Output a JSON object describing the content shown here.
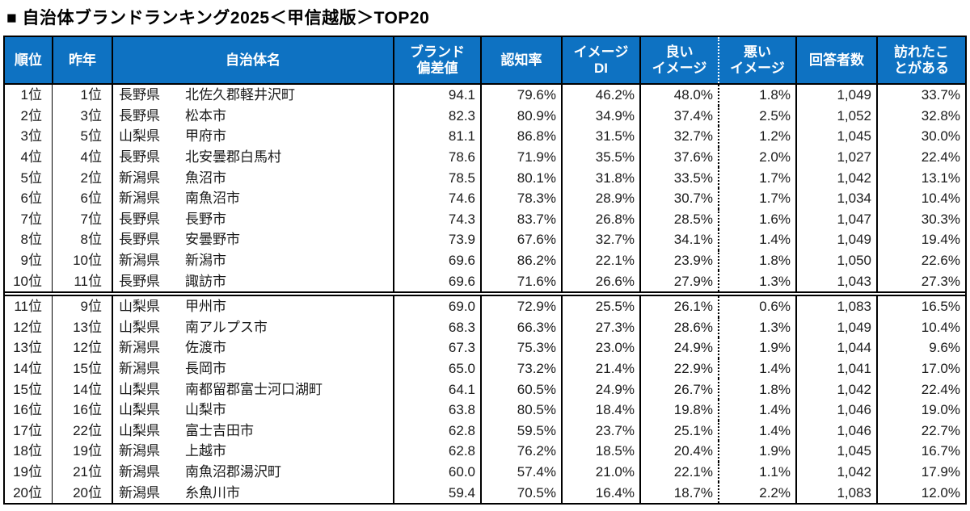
{
  "title": "■ 自治体ブランドランキング2025＜甲信越版＞TOP20",
  "colors": {
    "header_bg": "#0E72C2",
    "header_text": "#FFFFFF",
    "border": "#000000",
    "body_text": "#1A1A1A"
  },
  "table": {
    "headers": {
      "rank": "順位",
      "last_year": "昨年",
      "municipality": "自治体名",
      "brand_score": "ブランド\n偏差値",
      "awareness": "認知率",
      "image_di": "イメージ\nDI",
      "good_image": "良い\nイメージ",
      "bad_image": "悪い\nイメージ",
      "respondents": "回答者数",
      "visited": "訪れたこ\nとがある"
    },
    "rows": [
      {
        "rank": "1位",
        "prev": "1位",
        "pref": "長野県",
        "city": "北佐久郡軽井沢町",
        "score": "94.1",
        "awareness": "79.6%",
        "di": "46.2%",
        "good": "48.0%",
        "bad": "1.8%",
        "respondents": "1,049",
        "visited": "33.7%"
      },
      {
        "rank": "2位",
        "prev": "3位",
        "pref": "長野県",
        "city": "松本市",
        "score": "82.3",
        "awareness": "80.9%",
        "di": "34.9%",
        "good": "37.4%",
        "bad": "2.5%",
        "respondents": "1,052",
        "visited": "32.8%"
      },
      {
        "rank": "3位",
        "prev": "5位",
        "pref": "山梨県",
        "city": "甲府市",
        "score": "81.1",
        "awareness": "86.8%",
        "di": "31.5%",
        "good": "32.7%",
        "bad": "1.2%",
        "respondents": "1,045",
        "visited": "30.0%"
      },
      {
        "rank": "4位",
        "prev": "4位",
        "pref": "長野県",
        "city": "北安曇郡白馬村",
        "score": "78.6",
        "awareness": "71.9%",
        "di": "35.5%",
        "good": "37.6%",
        "bad": "2.0%",
        "respondents": "1,027",
        "visited": "22.4%"
      },
      {
        "rank": "5位",
        "prev": "2位",
        "pref": "新潟県",
        "city": "魚沼市",
        "score": "78.5",
        "awareness": "80.1%",
        "di": "31.8%",
        "good": "33.5%",
        "bad": "1.7%",
        "respondents": "1,042",
        "visited": "13.1%"
      },
      {
        "rank": "6位",
        "prev": "6位",
        "pref": "新潟県",
        "city": "南魚沼市",
        "score": "74.6",
        "awareness": "78.3%",
        "di": "28.9%",
        "good": "30.7%",
        "bad": "1.7%",
        "respondents": "1,034",
        "visited": "10.4%"
      },
      {
        "rank": "7位",
        "prev": "7位",
        "pref": "長野県",
        "city": "長野市",
        "score": "74.3",
        "awareness": "83.7%",
        "di": "26.8%",
        "good": "28.5%",
        "bad": "1.6%",
        "respondents": "1,047",
        "visited": "30.3%"
      },
      {
        "rank": "8位",
        "prev": "8位",
        "pref": "長野県",
        "city": "安曇野市",
        "score": "73.9",
        "awareness": "67.6%",
        "di": "32.7%",
        "good": "34.1%",
        "bad": "1.4%",
        "respondents": "1,049",
        "visited": "19.4%"
      },
      {
        "rank": "9位",
        "prev": "10位",
        "pref": "新潟県",
        "city": "新潟市",
        "score": "69.6",
        "awareness": "86.2%",
        "di": "22.1%",
        "good": "23.9%",
        "bad": "1.8%",
        "respondents": "1,050",
        "visited": "22.6%"
      },
      {
        "rank": "10位",
        "prev": "11位",
        "pref": "長野県",
        "city": "諏訪市",
        "score": "69.6",
        "awareness": "71.6%",
        "di": "26.6%",
        "good": "27.9%",
        "bad": "1.3%",
        "respondents": "1,043",
        "visited": "27.3%"
      },
      {
        "rank": "11位",
        "prev": "9位",
        "pref": "山梨県",
        "city": "甲州市",
        "score": "69.0",
        "awareness": "72.9%",
        "di": "25.5%",
        "good": "26.1%",
        "bad": "0.6%",
        "respondents": "1,083",
        "visited": "16.5%"
      },
      {
        "rank": "12位",
        "prev": "13位",
        "pref": "山梨県",
        "city": "南アルプス市",
        "score": "68.3",
        "awareness": "66.3%",
        "di": "27.3%",
        "good": "28.6%",
        "bad": "1.3%",
        "respondents": "1,049",
        "visited": "10.4%"
      },
      {
        "rank": "13位",
        "prev": "12位",
        "pref": "新潟県",
        "city": "佐渡市",
        "score": "67.3",
        "awareness": "75.3%",
        "di": "23.0%",
        "good": "24.9%",
        "bad": "1.9%",
        "respondents": "1,044",
        "visited": "9.6%"
      },
      {
        "rank": "14位",
        "prev": "15位",
        "pref": "新潟県",
        "city": "長岡市",
        "score": "65.0",
        "awareness": "73.2%",
        "di": "21.4%",
        "good": "22.9%",
        "bad": "1.4%",
        "respondents": "1,041",
        "visited": "17.0%"
      },
      {
        "rank": "15位",
        "prev": "14位",
        "pref": "山梨県",
        "city": "南都留郡富士河口湖町",
        "score": "64.1",
        "awareness": "60.5%",
        "di": "24.9%",
        "good": "26.7%",
        "bad": "1.8%",
        "respondents": "1,042",
        "visited": "22.4%"
      },
      {
        "rank": "16位",
        "prev": "16位",
        "pref": "山梨県",
        "city": "山梨市",
        "score": "63.8",
        "awareness": "80.5%",
        "di": "18.4%",
        "good": "19.8%",
        "bad": "1.4%",
        "respondents": "1,046",
        "visited": "19.0%"
      },
      {
        "rank": "17位",
        "prev": "22位",
        "pref": "山梨県",
        "city": "富士吉田市",
        "score": "62.8",
        "awareness": "59.5%",
        "di": "23.7%",
        "good": "25.1%",
        "bad": "1.4%",
        "respondents": "1,046",
        "visited": "22.7%"
      },
      {
        "rank": "18位",
        "prev": "19位",
        "pref": "新潟県",
        "city": "上越市",
        "score": "62.8",
        "awareness": "76.2%",
        "di": "18.5%",
        "good": "20.4%",
        "bad": "1.9%",
        "respondents": "1,045",
        "visited": "16.7%"
      },
      {
        "rank": "19位",
        "prev": "21位",
        "pref": "新潟県",
        "city": "南魚沼郡湯沢町",
        "score": "60.0",
        "awareness": "57.4%",
        "di": "21.0%",
        "good": "22.1%",
        "bad": "1.1%",
        "respondents": "1,042",
        "visited": "17.9%"
      },
      {
        "rank": "20位",
        "prev": "20位",
        "pref": "新潟県",
        "city": "糸魚川市",
        "score": "59.4",
        "awareness": "70.5%",
        "di": "16.4%",
        "good": "18.7%",
        "bad": "2.2%",
        "respondents": "1,083",
        "visited": "12.0%"
      }
    ]
  }
}
